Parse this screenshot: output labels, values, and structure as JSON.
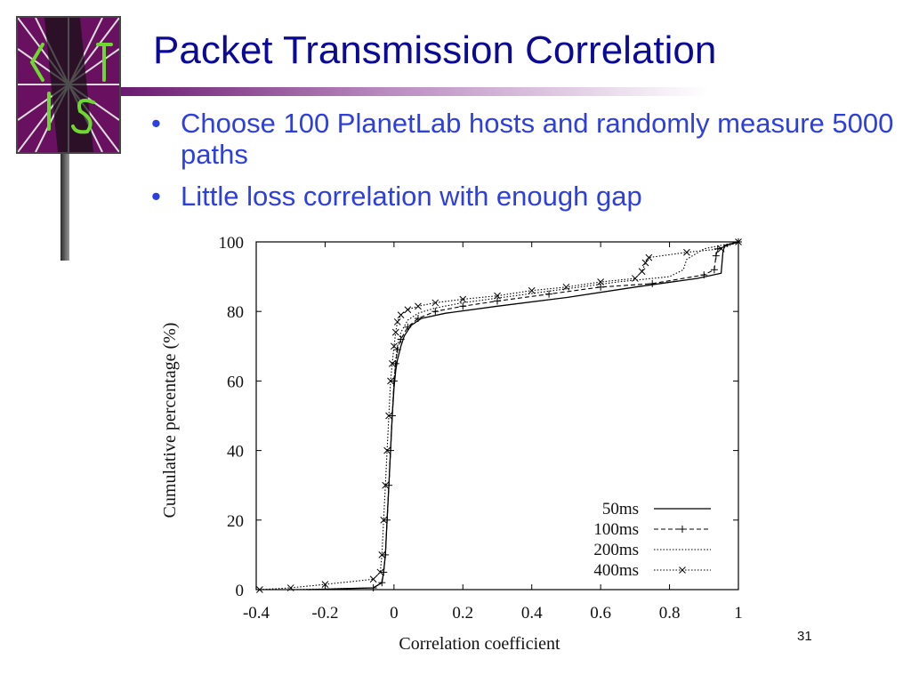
{
  "slide": {
    "title": "Packet Transmission Correlation",
    "bullets": [
      "Choose 100 PlanetLab hosts and randomly measure 5000 paths",
      "Little loss correlation with enough gap"
    ],
    "page_number": "31",
    "logo_icon": "cmu-logo-icon",
    "colors": {
      "title": "#0a0a96",
      "bullet_text": "#2e3fe0",
      "logo_background": "#6a1060",
      "accent_bar": "#6a1a70"
    }
  },
  "chart_data": {
    "type": "line",
    "title": "",
    "xlabel": "Correlation coefficient",
    "ylabel": "Cumulative percentage (%)",
    "xlim": [
      -0.4,
      1
    ],
    "ylim": [
      0,
      100
    ],
    "xticks": [
      "-0.4",
      "-0.2",
      "0",
      "0.2",
      "0.4",
      "0.6",
      "0.8",
      "1"
    ],
    "yticks": [
      "0",
      "20",
      "40",
      "60",
      "80",
      "100"
    ],
    "grid": false,
    "legend_position": "bottom-right",
    "series": [
      {
        "name": "50ms",
        "style": "solid",
        "marker": "none",
        "x": [
          -0.25,
          -0.06,
          -0.035,
          -0.03,
          -0.025,
          -0.02,
          -0.015,
          -0.01,
          -0.005,
          0.0,
          0.005,
          0.01,
          0.02,
          0.03,
          0.05,
          0.08,
          0.15,
          0.3,
          0.5,
          0.7,
          0.88,
          0.95,
          0.955,
          0.96,
          1.0
        ],
        "y": [
          0,
          0.5,
          2,
          5,
          10,
          20,
          30,
          40,
          50,
          58,
          63,
          66,
          70,
          73,
          76,
          78,
          79.5,
          81.5,
          84,
          87,
          89.5,
          91,
          97,
          99,
          100
        ]
      },
      {
        "name": "100ms",
        "style": "dashed",
        "marker": "plus",
        "x": [
          -0.06,
          -0.035,
          -0.03,
          -0.025,
          -0.02,
          -0.015,
          -0.01,
          -0.005,
          0.0,
          0.005,
          0.01,
          0.02,
          0.04,
          0.07,
          0.12,
          0.2,
          0.3,
          0.45,
          0.6,
          0.75,
          0.9,
          0.93,
          0.935,
          0.94,
          1.0
        ],
        "y": [
          0.5,
          2,
          5,
          10,
          20,
          30,
          40,
          50,
          60,
          65,
          69,
          72,
          75.5,
          78,
          80,
          81.5,
          83,
          85,
          87,
          88,
          90.5,
          92,
          96,
          98,
          100
        ]
      },
      {
        "name": "200ms",
        "style": "dotted",
        "marker": "none",
        "x": [
          -0.3,
          -0.06,
          -0.035,
          -0.03,
          -0.025,
          -0.02,
          -0.015,
          -0.01,
          -0.005,
          0.0,
          0.005,
          0.01,
          0.02,
          0.04,
          0.07,
          0.12,
          0.2,
          0.35,
          0.5,
          0.65,
          0.8,
          0.84,
          0.85,
          0.9,
          1.0
        ],
        "y": [
          0,
          0.5,
          2,
          5,
          10,
          20,
          30,
          40,
          50,
          60,
          66,
          70,
          74,
          77.5,
          79.5,
          81,
          82.5,
          84.5,
          86.5,
          88.5,
          90,
          92,
          95,
          98,
          100
        ]
      },
      {
        "name": "400ms",
        "style": "dotted",
        "marker": "cross",
        "x": [
          -0.39,
          -0.3,
          -0.2,
          -0.06,
          -0.04,
          -0.035,
          -0.03,
          -0.025,
          -0.02,
          -0.015,
          -0.01,
          -0.005,
          0.0,
          0.005,
          0.01,
          0.02,
          0.04,
          0.07,
          0.12,
          0.2,
          0.3,
          0.4,
          0.5,
          0.6,
          0.7,
          0.72,
          0.73,
          0.74,
          0.85,
          0.95,
          1.0
        ],
        "y": [
          0,
          0.5,
          1.5,
          3,
          5,
          10,
          20,
          30,
          40,
          50,
          60,
          65,
          70,
          74,
          77,
          79,
          80.5,
          81.5,
          82.5,
          83.5,
          84.5,
          86,
          87,
          88.5,
          89.5,
          91.5,
          94,
          95.5,
          97,
          98,
          100
        ]
      }
    ]
  }
}
